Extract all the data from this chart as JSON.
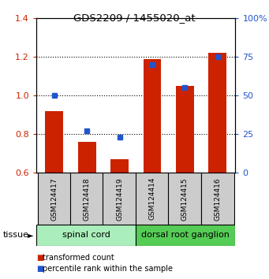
{
  "title": "GDS2209 / 1455020_at",
  "samples": [
    "GSM124417",
    "GSM124418",
    "GSM124419",
    "GSM124414",
    "GSM124415",
    "GSM124416"
  ],
  "red_values": [
    0.92,
    0.76,
    0.67,
    1.19,
    1.05,
    1.22
  ],
  "blue_values": [
    50,
    27,
    23,
    70,
    55,
    75
  ],
  "bar_bottom": 0.6,
  "ylim_left": [
    0.6,
    1.4
  ],
  "ylim_right": [
    0,
    100
  ],
  "yticks_left": [
    0.6,
    0.8,
    1.0,
    1.2,
    1.4
  ],
  "yticks_right": [
    0,
    25,
    50,
    75,
    100
  ],
  "ytick_labels_right": [
    "0",
    "25",
    "50",
    "75",
    "100%"
  ],
  "red_color": "#cc2200",
  "blue_color": "#2255cc",
  "bar_width": 0.55,
  "group1_color": "#aaeebb",
  "group2_color": "#55cc55",
  "box_color": "#cccccc",
  "tissue_label": "tissue",
  "group1_label": "spinal cord",
  "group2_label": "dorsal root ganglion",
  "legend_red": "transformed count",
  "legend_blue": "percentile rank within the sample",
  "grid_dotted_at": [
    0.8,
    1.0,
    1.2
  ]
}
